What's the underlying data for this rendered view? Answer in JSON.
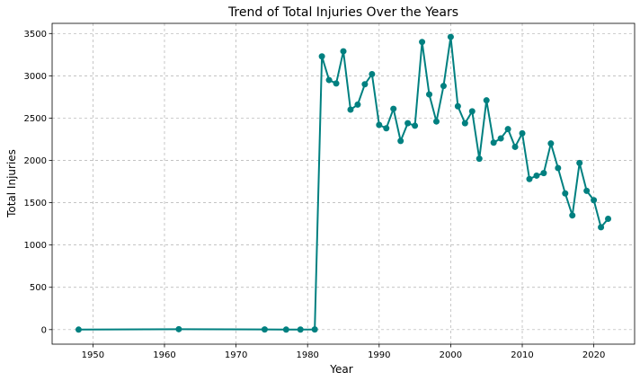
{
  "chart_data": {
    "type": "line",
    "title": "Trend of Total Injuries Over the Years",
    "xlabel": "Year",
    "ylabel": "Total Injuries",
    "xlim": [
      1944.3,
      2025.7
    ],
    "ylim": [
      -172,
      3620
    ],
    "x_ticks": [
      1950,
      1960,
      1970,
      1980,
      1990,
      2000,
      2010,
      2020
    ],
    "y_ticks": [
      0,
      500,
      1000,
      1500,
      2000,
      2500,
      3000,
      3500
    ],
    "grid": true,
    "legend": "none",
    "series": [
      {
        "color": "#008080",
        "x": [
          1948,
          1962,
          1974,
          1977,
          1979,
          1981,
          1982,
          1983,
          1984,
          1985,
          1986,
          1987,
          1988,
          1989,
          1990,
          1991,
          1992,
          1993,
          1994,
          1995,
          1996,
          1997,
          1998,
          1999,
          2000,
          2001,
          2002,
          2003,
          2004,
          2005,
          2006,
          2007,
          2008,
          2009,
          2010,
          2011,
          2012,
          2013,
          2014,
          2015,
          2016,
          2017,
          2018,
          2019,
          2020,
          2021,
          2022
        ],
        "y": [
          0,
          5,
          2,
          0,
          1,
          2,
          3230,
          2950,
          2910,
          3290,
          2600,
          2660,
          2900,
          3020,
          2420,
          2380,
          2610,
          2230,
          2440,
          2410,
          3400,
          2780,
          2460,
          2880,
          3460,
          2640,
          2440,
          2580,
          2020,
          2710,
          2210,
          2260,
          2370,
          2160,
          2320,
          1780,
          1820,
          1850,
          2200,
          1910,
          1610,
          1350,
          1970,
          1640,
          1530,
          1210,
          1310
        ]
      }
    ]
  }
}
